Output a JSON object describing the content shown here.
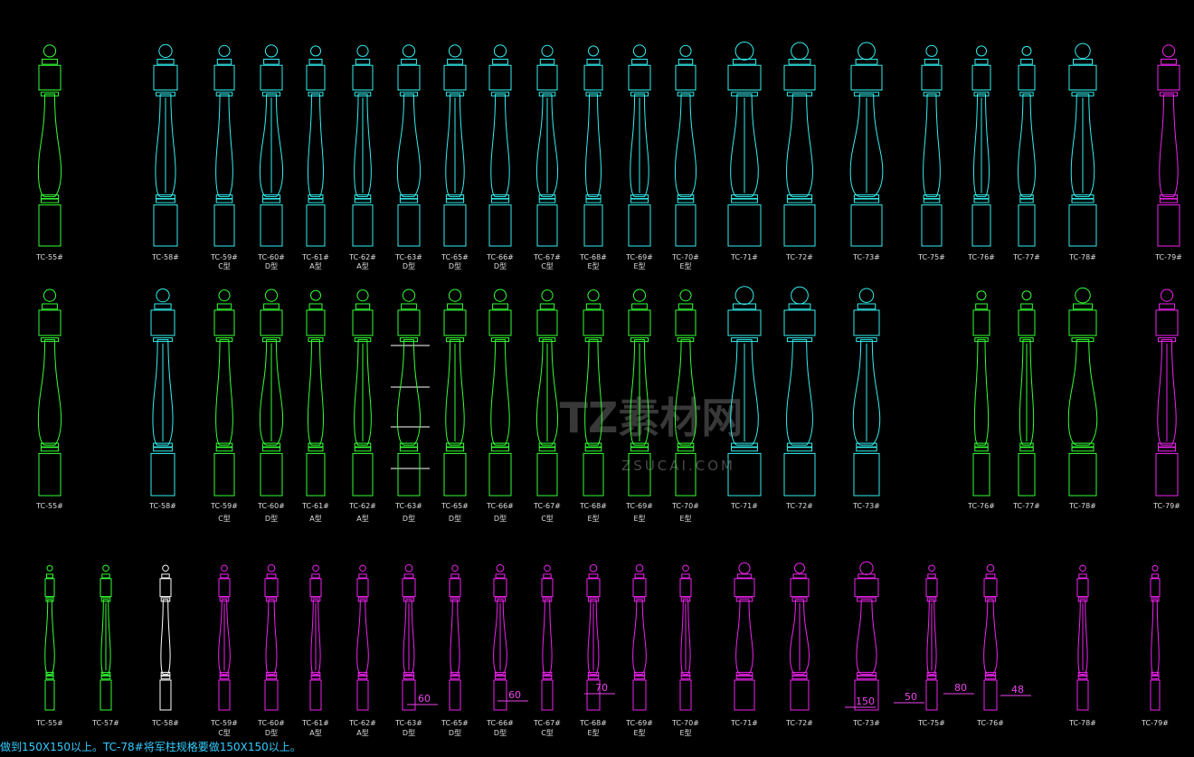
{
  "rows": [
    {
      "items": [
        {
          "label": "TC-55#",
          "color": "#3f3"
        },
        {
          "label": "TC-58#",
          "color": "#3ee"
        },
        {
          "label": "TC-59#",
          "type": "C型",
          "color": "#3ee"
        },
        {
          "label": "TC-60#",
          "type": "D型",
          "color": "#3ee"
        },
        {
          "label": "TC-61#",
          "type": "A型",
          "color": "#3ee"
        },
        {
          "label": "TC-62#",
          "type": "A型",
          "color": "#3ee"
        },
        {
          "label": "TC-63#",
          "type": "D型",
          "color": "#3ee"
        },
        {
          "label": "TC-65#",
          "type": "D型",
          "color": "#3ee"
        },
        {
          "label": "TC-66#",
          "type": "D型",
          "color": "#3ee"
        },
        {
          "label": "TC-67#",
          "type": "C型",
          "color": "#3ee"
        },
        {
          "label": "TC-68#",
          "type": "E型",
          "color": "#3ee"
        },
        {
          "label": "TC-69#",
          "type": "E型",
          "color": "#3ee"
        },
        {
          "label": "TC-70#",
          "type": "E型",
          "color": "#3ee"
        },
        {
          "label": "TC-71#",
          "color": "#3ee"
        },
        {
          "label": "TC-72#",
          "color": "#3ee"
        },
        {
          "label": "TC-73#",
          "color": "#3ee"
        },
        {
          "label": "TC-75#",
          "color": "#3ee"
        },
        {
          "label": "TC-76#",
          "color": "#3ee"
        },
        {
          "label": "TC-77#",
          "color": "#3ee"
        },
        {
          "label": "TC-78#",
          "color": "#3ee"
        },
        {
          "label": "TC-79#",
          "color": "#e2e"
        }
      ]
    },
    {
      "items": [
        {
          "label": "TC-55#",
          "color": "#3f3"
        },
        {
          "label": "TC-58#",
          "color": "#3ee"
        },
        {
          "label": "TC-59#",
          "type": "C型",
          "color": "#3f3"
        },
        {
          "label": "TC-60#",
          "type": "D型",
          "color": "#3f3"
        },
        {
          "label": "TC-61#",
          "type": "A型",
          "color": "#3f3"
        },
        {
          "label": "TC-62#",
          "type": "A型",
          "color": "#3f3"
        },
        {
          "label": "TC-63#",
          "type": "D型",
          "color": "#3f3"
        },
        {
          "label": "TC-65#",
          "type": "D型",
          "color": "#3f3"
        },
        {
          "label": "TC-66#",
          "type": "D型",
          "color": "#3f3"
        },
        {
          "label": "TC-67#",
          "type": "C型",
          "color": "#3f3"
        },
        {
          "label": "TC-68#",
          "type": "E型",
          "color": "#3f3"
        },
        {
          "label": "TC-69#",
          "type": "E型",
          "color": "#3f3"
        },
        {
          "label": "TC-70#",
          "type": "E型",
          "color": "#3f3"
        },
        {
          "label": "TC-71#",
          "color": "#3ee"
        },
        {
          "label": "TC-72#",
          "color": "#3ee"
        },
        {
          "label": "TC-73#",
          "color": "#3ee"
        },
        {
          "label": "TC-76#",
          "color": "#3f3"
        },
        {
          "label": "TC-77#",
          "color": "#3f3"
        },
        {
          "label": "TC-78#",
          "color": "#3f3"
        },
        {
          "label": "TC-79#",
          "color": "#e2e"
        }
      ]
    },
    {
      "items": [
        {
          "label": "TC-55#",
          "color": "#3f3"
        },
        {
          "label": "TC-57#",
          "color": "#3f3"
        },
        {
          "label": "TC-58#",
          "color": "#fff"
        },
        {
          "label": "TC-59#",
          "type": "C型",
          "color": "#e2e"
        },
        {
          "label": "TC-60#",
          "type": "D型",
          "color": "#e2e"
        },
        {
          "label": "TC-61#",
          "type": "A型",
          "color": "#e2e"
        },
        {
          "label": "TC-62#",
          "type": "A型",
          "color": "#e2e"
        },
        {
          "label": "TC-63#",
          "type": "D型",
          "color": "#e2e"
        },
        {
          "label": "TC-65#",
          "type": "D型",
          "color": "#e2e"
        },
        {
          "label": "TC-66#",
          "type": "D型",
          "color": "#e2e"
        },
        {
          "label": "TC-67#",
          "type": "C型",
          "color": "#e2e"
        },
        {
          "label": "TC-68#",
          "type": "E型",
          "color": "#e2e"
        },
        {
          "label": "TC-69#",
          "type": "E型",
          "color": "#e2e"
        },
        {
          "label": "TC-70#",
          "type": "E型",
          "color": "#e2e"
        },
        {
          "label": "TC-71#",
          "color": "#e2e"
        },
        {
          "label": "TC-72#",
          "color": "#e2e"
        },
        {
          "label": "TC-73#",
          "color": "#e2e"
        },
        {
          "label": "TC-75#",
          "color": "#e2e"
        },
        {
          "label": "TC-76#",
          "color": "#e2e"
        },
        {
          "label": "TC-78#",
          "color": "#e2e"
        },
        {
          "label": "TC-79#",
          "color": "#e2e"
        }
      ]
    }
  ],
  "dimensions": [
    60,
    60,
    70,
    150,
    50,
    80,
    48
  ],
  "note": "做到150X150以上。TC-78#将军柱规格要做150X150以上。",
  "watermark": {
    "title": "TZ素材网",
    "url": "ZSUCAI.COM"
  }
}
